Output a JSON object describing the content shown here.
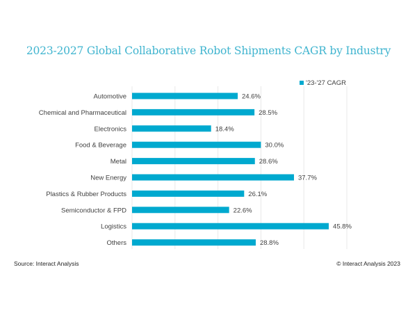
{
  "chart_data": {
    "type": "bar",
    "orientation": "horizontal",
    "title": "2023-2027 Global Collaborative Robot Shipments CAGR by Industry",
    "categories": [
      "Automotive",
      "Chemical and Pharmaceutical",
      "Electronics",
      "Food & Beverage",
      "Metal",
      "New Energy",
      "Plastics & Rubber Products",
      "Semiconductor & FPD",
      "Logistics",
      "Others"
    ],
    "series": [
      {
        "name": "'23-'27 CAGR",
        "values": [
          24.6,
          28.5,
          18.4,
          30.0,
          28.6,
          37.7,
          26.1,
          22.6,
          45.8,
          28.8
        ],
        "labels": [
          "24.6%",
          "28.5%",
          "18.4%",
          "30.0%",
          "28.6%",
          "37.7%",
          "26.1%",
          "22.6%",
          "45.8%",
          "28.8%"
        ]
      }
    ],
    "xlabel": "",
    "ylabel": "",
    "xlim": [
      0,
      50
    ],
    "grid_step": 10,
    "grid": true,
    "legend_position": "top-right",
    "bar_color": "#00a9cf",
    "grid_color": "#e8e8e8"
  },
  "footer": {
    "source": "Source: Interact Analysis",
    "copyright": "© Interact Analysis 2023"
  }
}
